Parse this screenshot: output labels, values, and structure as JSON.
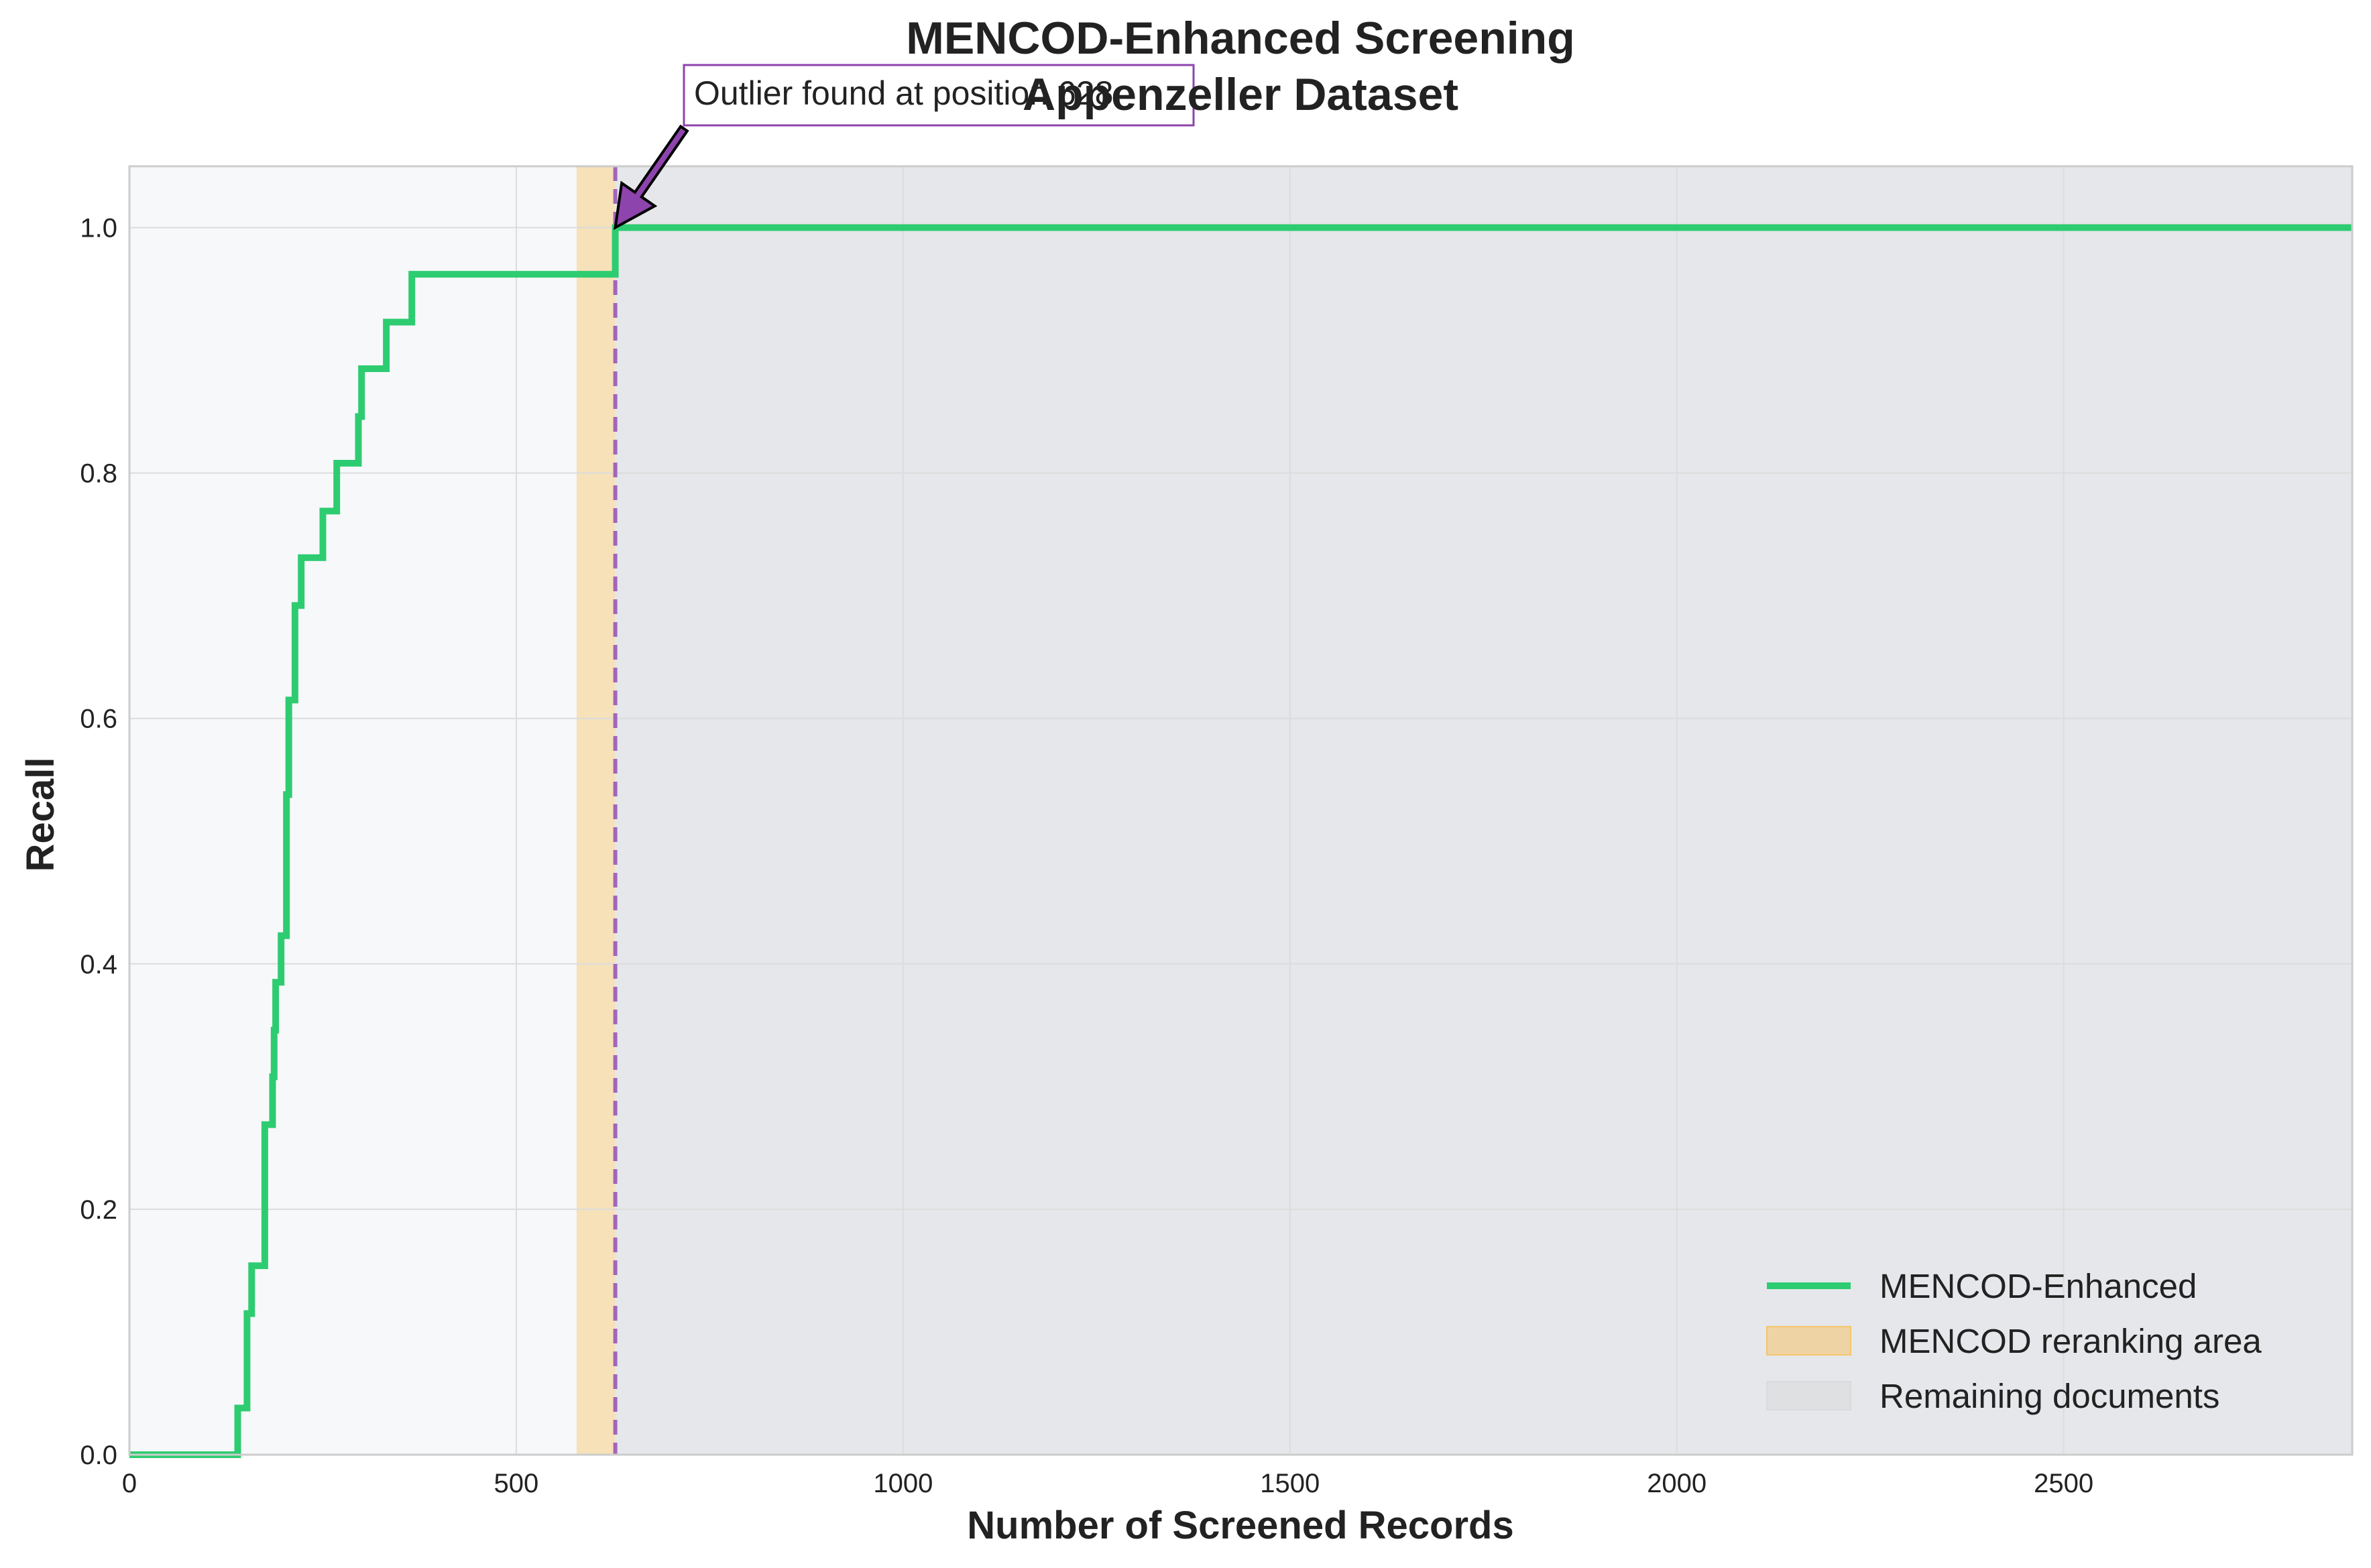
{
  "chart_data": {
    "type": "line",
    "title": "MENCOD-Enhanced Screening",
    "subtitle": "Appenzeller Dataset",
    "xlabel": "Number of Screened Records",
    "ylabel": "Recall",
    "xlim": [
      0,
      2873
    ],
    "ylim": [
      0,
      1.05
    ],
    "x_ticks": [
      0,
      500,
      1000,
      1500,
      2000,
      2500
    ],
    "x_tick_labels": [
      "0",
      "500",
      "1000",
      "1500",
      "2000",
      "2500"
    ],
    "y_ticks": [
      0,
      0.2,
      0.4,
      0.6,
      0.8,
      1.0
    ],
    "y_tick_labels": [
      "0.0",
      "0.2",
      "0.4",
      "0.6",
      "0.8",
      "1.0"
    ],
    "grid": true,
    "legend_position": "lower-right",
    "series": [
      {
        "name": "MENCOD-Enhanced",
        "color": "#2ecc71",
        "step": true,
        "points": [
          [
            0,
            0.0
          ],
          [
            140,
            0.0
          ],
          [
            140,
            0.038
          ],
          [
            152,
            0.038
          ],
          [
            152,
            0.115
          ],
          [
            158,
            0.115
          ],
          [
            158,
            0.154
          ],
          [
            175,
            0.154
          ],
          [
            175,
            0.269
          ],
          [
            185,
            0.269
          ],
          [
            185,
            0.308
          ],
          [
            187,
            0.308
          ],
          [
            187,
            0.346
          ],
          [
            189,
            0.346
          ],
          [
            189,
            0.385
          ],
          [
            196,
            0.385
          ],
          [
            196,
            0.423
          ],
          [
            203,
            0.423
          ],
          [
            203,
            0.538
          ],
          [
            206,
            0.538
          ],
          [
            206,
            0.615
          ],
          [
            214,
            0.615
          ],
          [
            214,
            0.692
          ],
          [
            222,
            0.692
          ],
          [
            222,
            0.731
          ],
          [
            250,
            0.731
          ],
          [
            250,
            0.769
          ],
          [
            268,
            0.769
          ],
          [
            268,
            0.808
          ],
          [
            296,
            0.808
          ],
          [
            296,
            0.846
          ],
          [
            300,
            0.846
          ],
          [
            300,
            0.885
          ],
          [
            332,
            0.885
          ],
          [
            332,
            0.923
          ],
          [
            365,
            0.923
          ],
          [
            365,
            0.962
          ],
          [
            628,
            0.962
          ],
          [
            628,
            1.0
          ],
          [
            2873,
            1.0
          ]
        ]
      }
    ],
    "regions": [
      {
        "name": "MENCOD reranking area",
        "x_start": 578,
        "x_end": 628,
        "color": "#f5c56b"
      },
      {
        "name": "Remaining documents",
        "x_start": 628,
        "x_end": 2873,
        "color": "#e5e7ea"
      }
    ],
    "marker_line": {
      "x": 628,
      "color": "#9b59b6"
    },
    "annotation": {
      "text": "Outlier found at position 628",
      "x": 628,
      "y": 1.0,
      "color": "#8e44ad"
    },
    "legend": [
      {
        "label": "MENCOD-Enhanced",
        "kind": "line",
        "color": "#2ecc71"
      },
      {
        "label": "MENCOD reranking area",
        "kind": "patch",
        "color": "#f5c56b"
      },
      {
        "label": "Remaining documents",
        "kind": "patch",
        "color": "#d9dadb"
      }
    ]
  }
}
